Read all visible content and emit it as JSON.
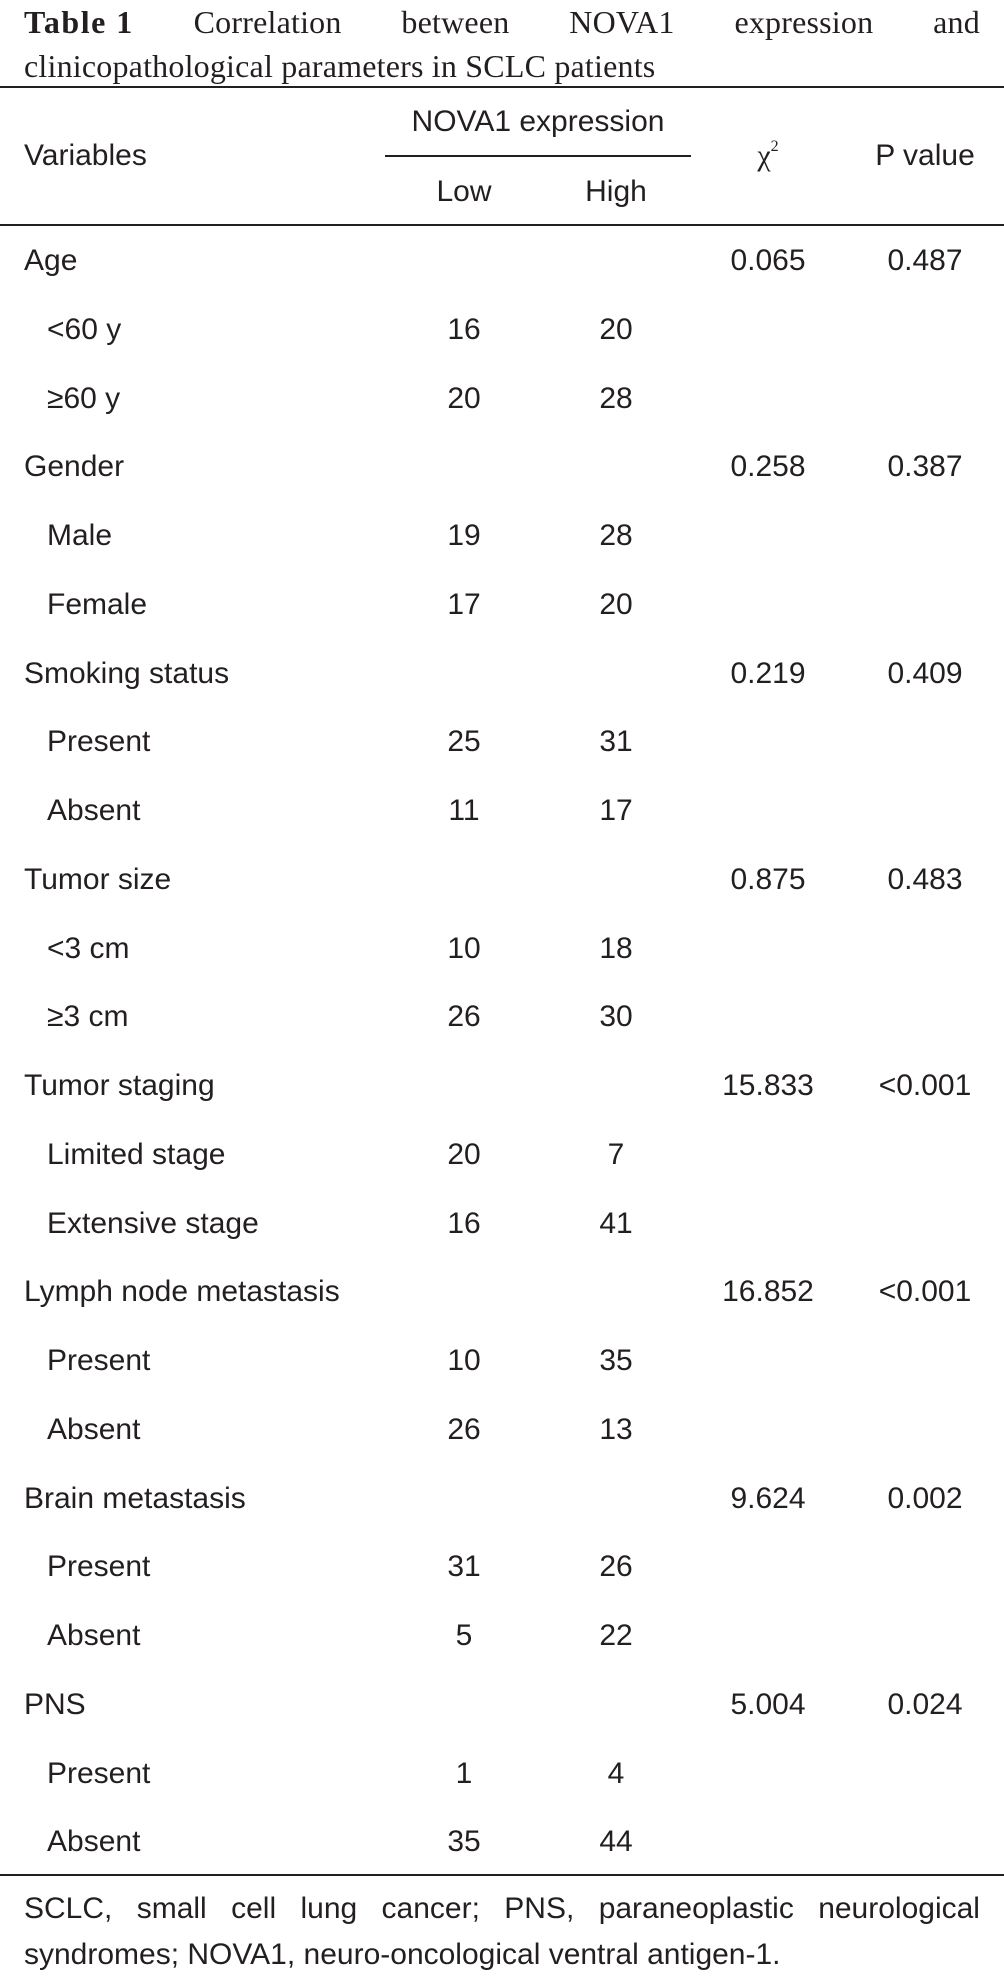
{
  "caption": {
    "label": "Table 1",
    "title_line1_words": [
      "Correlation",
      "between",
      "NOVA1",
      "expression",
      "and"
    ],
    "title_line2": "clinicopathological parameters in SCLC patients"
  },
  "header": {
    "variables": "Variables",
    "group": "NOVA1 expression",
    "low": "Low",
    "high": "High",
    "chi_symbol": "χ",
    "chi_superscript": "2",
    "p_value": "P value"
  },
  "rows": [
    {
      "label": "Age",
      "sub": false,
      "low": "",
      "high": "",
      "chi": "0.065",
      "p": "0.487"
    },
    {
      "label": "<60 y",
      "sub": true,
      "low": "16",
      "high": "20",
      "chi": "",
      "p": ""
    },
    {
      "label": "≥60 y",
      "sub": true,
      "low": "20",
      "high": "28",
      "chi": "",
      "p": ""
    },
    {
      "label": "Gender",
      "sub": false,
      "low": "",
      "high": "",
      "chi": "0.258",
      "p": "0.387"
    },
    {
      "label": "Male",
      "sub": true,
      "low": "19",
      "high": "28",
      "chi": "",
      "p": ""
    },
    {
      "label": "Female",
      "sub": true,
      "low": "17",
      "high": "20",
      "chi": "",
      "p": ""
    },
    {
      "label": "Smoking status",
      "sub": false,
      "low": "",
      "high": "",
      "chi": "0.219",
      "p": "0.409"
    },
    {
      "label": "Present",
      "sub": true,
      "low": "25",
      "high": "31",
      "chi": "",
      "p": ""
    },
    {
      "label": "Absent",
      "sub": true,
      "low": "11",
      "high": "17",
      "chi": "",
      "p": ""
    },
    {
      "label": "Tumor size",
      "sub": false,
      "low": "",
      "high": "",
      "chi": "0.875",
      "p": "0.483"
    },
    {
      "label": "<3 cm",
      "sub": true,
      "low": "10",
      "high": "18",
      "chi": "",
      "p": ""
    },
    {
      "label": "≥3 cm",
      "sub": true,
      "low": "26",
      "high": "30",
      "chi": "",
      "p": ""
    },
    {
      "label": "Tumor staging",
      "sub": false,
      "low": "",
      "high": "",
      "chi": "15.833",
      "p": "<0.001"
    },
    {
      "label": "Limited stage",
      "sub": true,
      "low": "20",
      "high": "7",
      "chi": "",
      "p": ""
    },
    {
      "label": "Extensive stage",
      "sub": true,
      "low": "16",
      "high": "41",
      "chi": "",
      "p": ""
    },
    {
      "label": "Lymph node metastasis",
      "sub": false,
      "low": "",
      "high": "",
      "chi": "16.852",
      "p": "<0.001"
    },
    {
      "label": "Present",
      "sub": true,
      "low": "10",
      "high": "35",
      "chi": "",
      "p": ""
    },
    {
      "label": "Absent",
      "sub": true,
      "low": "26",
      "high": "13",
      "chi": "",
      "p": ""
    },
    {
      "label": "Brain metastasis",
      "sub": false,
      "low": "",
      "high": "",
      "chi": "9.624",
      "p": "0.002"
    },
    {
      "label": "Present",
      "sub": true,
      "low": "31",
      "high": "26",
      "chi": "",
      "p": ""
    },
    {
      "label": "Absent",
      "sub": true,
      "low": "5",
      "high": "22",
      "chi": "",
      "p": ""
    },
    {
      "label": "PNS",
      "sub": false,
      "low": "",
      "high": "",
      "chi": "5.004",
      "p": "0.024"
    },
    {
      "label": "Present",
      "sub": true,
      "low": "1",
      "high": "4",
      "chi": "",
      "p": ""
    },
    {
      "label": "Absent",
      "sub": true,
      "low": "35",
      "high": "44",
      "chi": "",
      "p": ""
    }
  ],
  "footnote": {
    "line1_words": [
      "SCLC,",
      "small",
      "cell",
      "lung",
      "cancer;",
      "PNS,",
      "paraneoplastic",
      "neurological"
    ],
    "line2": "syndromes; NOVA1, neuro-oncological ventral antigen-1."
  }
}
